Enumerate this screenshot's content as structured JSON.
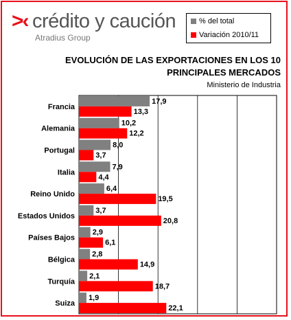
{
  "brand": {
    "mark": ">‹",
    "name": "crédito y caución",
    "sub": "Atradius Group"
  },
  "legend": {
    "items": [
      {
        "label": "% del total",
        "color": "#808080"
      },
      {
        "label": "Variación 2010/11",
        "color": "#ff0000"
      }
    ]
  },
  "chart_data": {
    "type": "bar",
    "orientation": "horizontal",
    "title": "EVOLUCIÓN DE LAS EXPORTACIONES EN LOS 10 PRINCIPALES MERCADOS",
    "subtitle": "Ministerio de Industria",
    "xlabel": "",
    "ylabel": "",
    "xlim": [
      0,
      50
    ],
    "grid": true,
    "legend_position": "top-right",
    "categories": [
      "Francia",
      "Alemania",
      "Portugal",
      "Italia",
      "Reino Unido",
      "Estados Unidos",
      "Países Bajos",
      "Bélgica",
      "Turquía",
      "Suiza"
    ],
    "series": [
      {
        "name": "% del total",
        "color": "#808080",
        "values": [
          17.9,
          10.2,
          8.0,
          7.9,
          6.4,
          3.7,
          2.9,
          2.8,
          2.1,
          1.9
        ],
        "labels": [
          "17,9",
          "10,2",
          "8,0",
          "7,9",
          "6,4",
          "3,7",
          "2,9",
          "2,8",
          "2,1",
          "1,9"
        ]
      },
      {
        "name": "Variación 2010/11",
        "color": "#ff0000",
        "values": [
          13.3,
          12.2,
          3.7,
          4.4,
          19.5,
          20.8,
          6.1,
          14.9,
          18.7,
          22.1
        ],
        "labels": [
          "13,3",
          "12,2",
          "3,7",
          "4,4",
          "19,5",
          "20,8",
          "6,1",
          "14,9",
          "18,7",
          "22,1"
        ]
      }
    ]
  }
}
